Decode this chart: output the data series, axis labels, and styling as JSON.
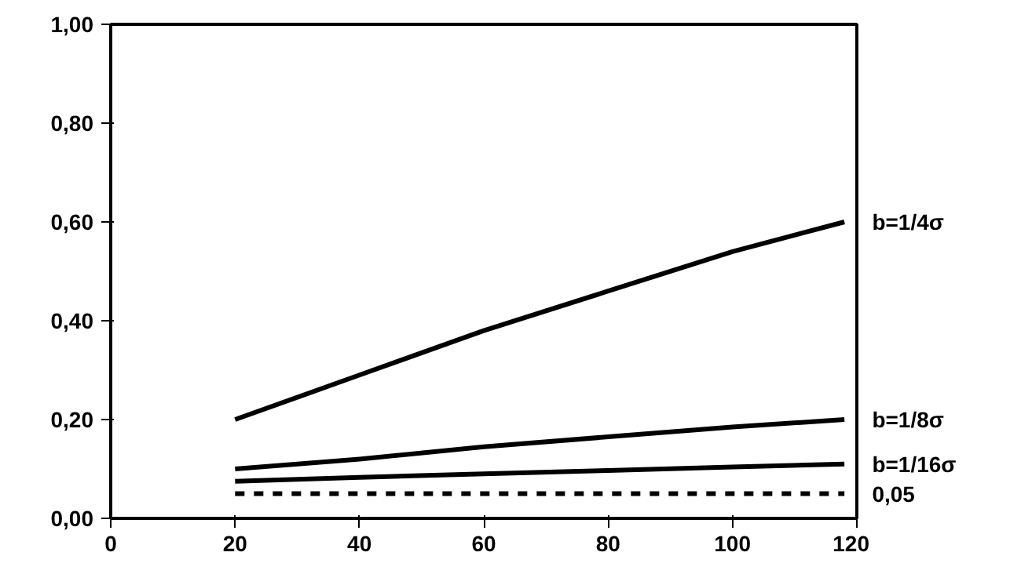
{
  "chart_data": {
    "type": "line",
    "x": [
      20,
      40,
      60,
      80,
      100,
      118
    ],
    "series": [
      {
        "name": "b=1/4σ",
        "color": "#000000",
        "values": [
          0.2,
          0.29,
          0.38,
          0.46,
          0.54,
          0.6
        ]
      },
      {
        "name": "b=1/8σ",
        "color": "#000000",
        "values": [
          0.1,
          0.12,
          0.145,
          0.165,
          0.185,
          0.2
        ]
      },
      {
        "name": "b=1/16σ",
        "color": "#000000",
        "values": [
          0.075,
          0.083,
          0.09,
          0.097,
          0.104,
          0.11
        ]
      },
      {
        "name": "0,05",
        "color": "#000000",
        "line_style": "dashed",
        "values": [
          0.05,
          0.05,
          0.05,
          0.05,
          0.05,
          0.05
        ]
      }
    ],
    "xlim": [
      0,
      120
    ],
    "xticks": [
      0,
      20,
      40,
      60,
      80,
      100,
      120
    ],
    "ylim": [
      0,
      1
    ],
    "yticks": [
      {
        "value": 0,
        "label": "0,00"
      },
      {
        "value": 0.2,
        "label": "0,20"
      },
      {
        "value": 0.4,
        "label": "0,40"
      },
      {
        "value": 0.6,
        "label": "0,60"
      },
      {
        "value": 0.8,
        "label": "0,80"
      },
      {
        "value": 1,
        "label": "1,00"
      }
    ],
    "grid": false,
    "marker": "none",
    "line_style": "solid"
  }
}
